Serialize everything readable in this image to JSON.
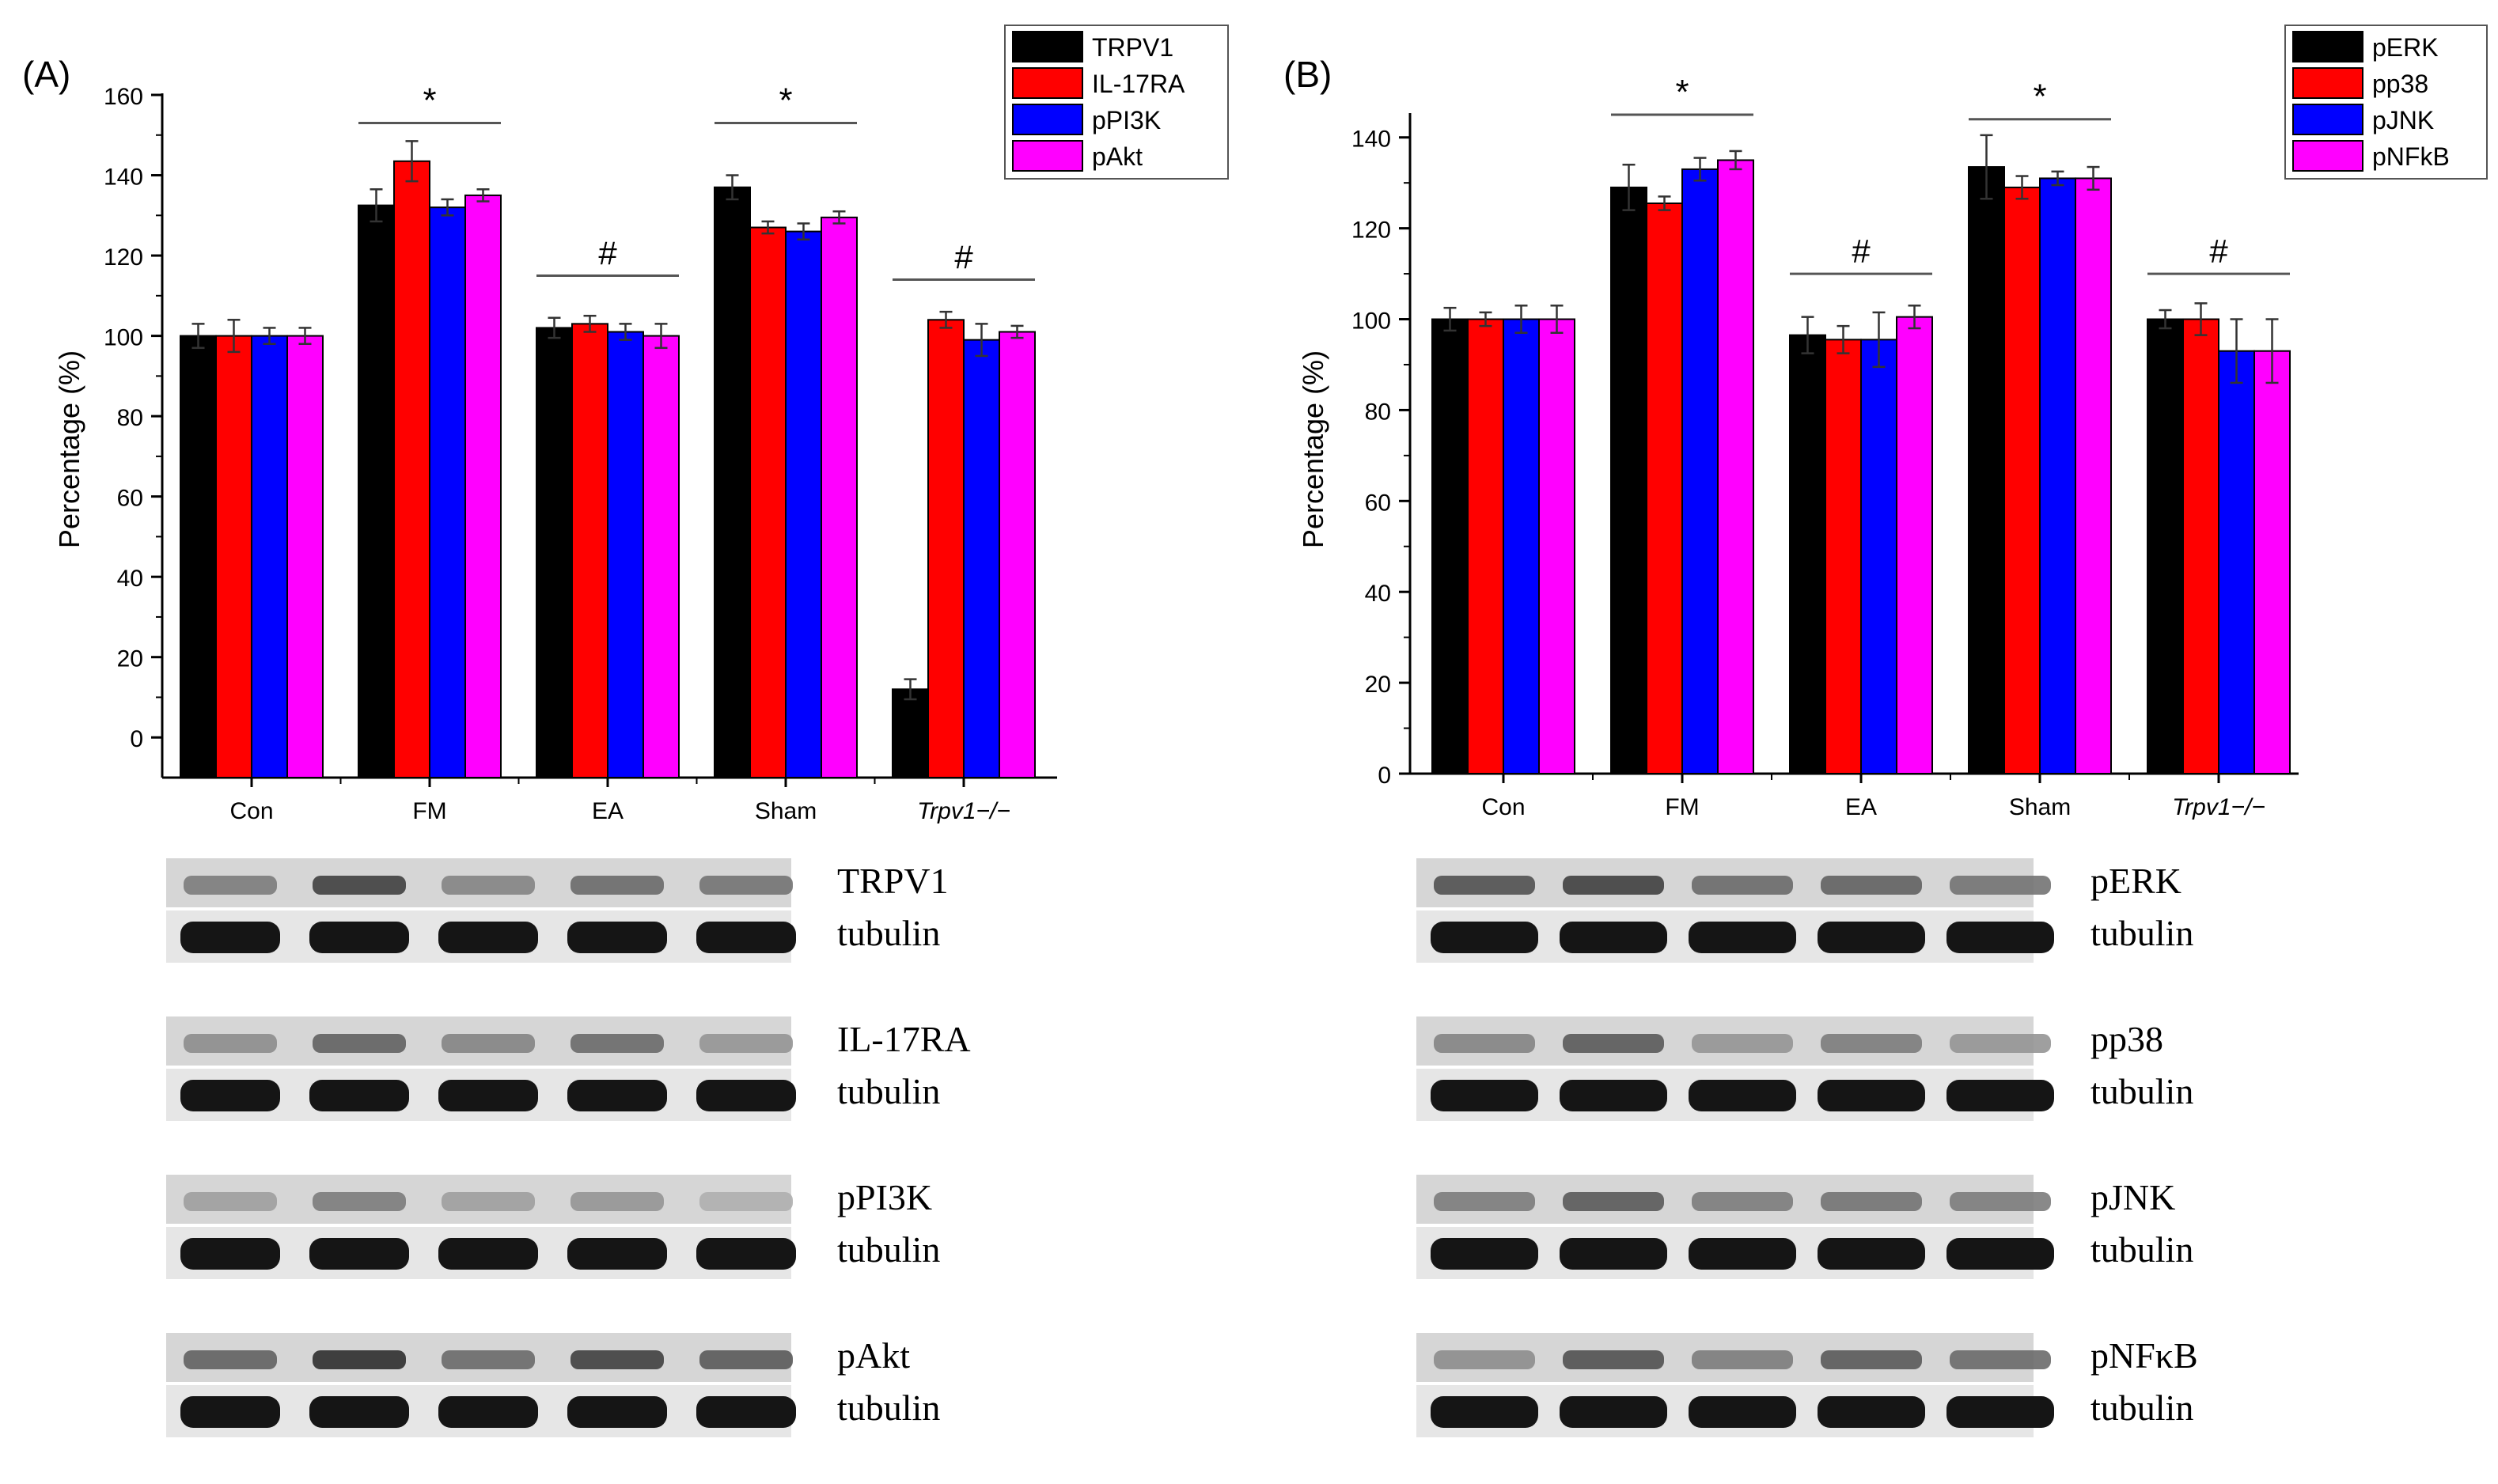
{
  "colors": {
    "black": "#000000",
    "red": "#ff0000",
    "blue": "#0000ff",
    "magenta": "#ff00ff",
    "blot_bg": "#d6d6d6",
    "band": "#151515"
  },
  "chart_data": [
    {
      "type": "bar",
      "panel_label": "(A)",
      "ylabel": "Percentage (%)",
      "xlabel": "",
      "ylim": [
        -10,
        160
      ],
      "yticks": [
        0,
        20,
        40,
        60,
        80,
        100,
        120,
        140,
        160
      ],
      "categories": [
        "Con",
        "FM",
        "EA",
        "Sham",
        "Trpv1−/−"
      ],
      "legend_position": "top-right",
      "series": [
        {
          "name": "TRPV1",
          "color": "#000000",
          "values": [
            100,
            132.5,
            102,
            137,
            12
          ],
          "errors": [
            3,
            4,
            2.5,
            3,
            2.5
          ]
        },
        {
          "name": "IL-17RA",
          "color": "#ff0000",
          "values": [
            100,
            143.5,
            103,
            127,
            104
          ],
          "errors": [
            4,
            5,
            2,
            1.5,
            2
          ]
        },
        {
          "name": "pPI3K",
          "color": "#0000ff",
          "values": [
            100,
            132,
            101,
            126,
            99
          ],
          "errors": [
            2,
            2,
            2,
            2,
            4
          ]
        },
        {
          "name": "pAkt",
          "color": "#ff00ff",
          "values": [
            100,
            135,
            100,
            129.5,
            101
          ],
          "errors": [
            2,
            1.5,
            3,
            1.5,
            1.5
          ]
        }
      ],
      "annotations": [
        {
          "text": "*",
          "from": 1,
          "to": 1,
          "y": 153
        },
        {
          "text": "#",
          "from": 2,
          "to": 2,
          "y": 115
        },
        {
          "text": "*",
          "from": 3,
          "to": 3,
          "y": 153
        },
        {
          "text": "#",
          "from": 4,
          "to": 4,
          "y": 114
        }
      ]
    },
    {
      "type": "bar",
      "panel_label": "(B)",
      "ylabel": "Percentage (%)",
      "xlabel": "",
      "ylim": [
        0,
        140
      ],
      "yticks": [
        0,
        20,
        40,
        60,
        80,
        100,
        120,
        140
      ],
      "categories": [
        "Con",
        "FM",
        "EA",
        "Sham",
        "Trpv1−/−"
      ],
      "legend_position": "top-right",
      "series": [
        {
          "name": "pERK",
          "color": "#000000",
          "values": [
            100,
            129,
            96.5,
            133.5,
            100
          ],
          "errors": [
            2.5,
            5,
            4,
            7,
            2
          ]
        },
        {
          "name": "pp38",
          "color": "#ff0000",
          "values": [
            100,
            125.5,
            95.5,
            129,
            100
          ],
          "errors": [
            1.5,
            1.5,
            3,
            2.5,
            3.5
          ]
        },
        {
          "name": "pJNK",
          "color": "#0000ff",
          "values": [
            100,
            133,
            95.5,
            131,
            93
          ],
          "errors": [
            3,
            2.5,
            6,
            1.5,
            7
          ]
        },
        {
          "name": "pNFkB",
          "color": "#ff00ff",
          "values": [
            100,
            135,
            100.5,
            131,
            93
          ],
          "errors": [
            3,
            2,
            2.5,
            2.5,
            7
          ]
        }
      ],
      "annotations": [
        {
          "text": "*",
          "from": 1,
          "to": 1,
          "y": 145
        },
        {
          "text": "#",
          "from": 2,
          "to": 2,
          "y": 110
        },
        {
          "text": "*",
          "from": 3,
          "to": 3,
          "y": 144
        },
        {
          "text": "#",
          "from": 4,
          "to": 4,
          "y": 110
        }
      ]
    }
  ],
  "blots": {
    "A": [
      {
        "protein": "TRPV1",
        "loading": "tubulin",
        "band_intensity": [
          0.45,
          0.8,
          0.4,
          0.55,
          0.5
        ]
      },
      {
        "protein": "IL-17RA",
        "loading": "tubulin",
        "band_intensity": [
          0.35,
          0.6,
          0.4,
          0.55,
          0.3
        ]
      },
      {
        "protein": "pPI3K",
        "loading": "tubulin",
        "band_intensity": [
          0.25,
          0.45,
          0.25,
          0.3,
          0.15
        ]
      },
      {
        "protein": "pAkt",
        "loading": "tubulin",
        "band_intensity": [
          0.6,
          0.9,
          0.55,
          0.8,
          0.65
        ]
      }
    ],
    "B": [
      {
        "protein": "pERK",
        "loading": "tubulin",
        "band_intensity": [
          0.7,
          0.8,
          0.55,
          0.6,
          0.5
        ]
      },
      {
        "protein": "pp38",
        "loading": "tubulin",
        "band_intensity": [
          0.4,
          0.65,
          0.3,
          0.45,
          0.3
        ]
      },
      {
        "protein": "pJNK",
        "loading": "tubulin",
        "band_intensity": [
          0.45,
          0.65,
          0.45,
          0.5,
          0.45
        ]
      },
      {
        "protein": "pNFκB",
        "loading": "tubulin",
        "band_intensity": [
          0.35,
          0.7,
          0.45,
          0.65,
          0.55
        ]
      }
    ]
  }
}
